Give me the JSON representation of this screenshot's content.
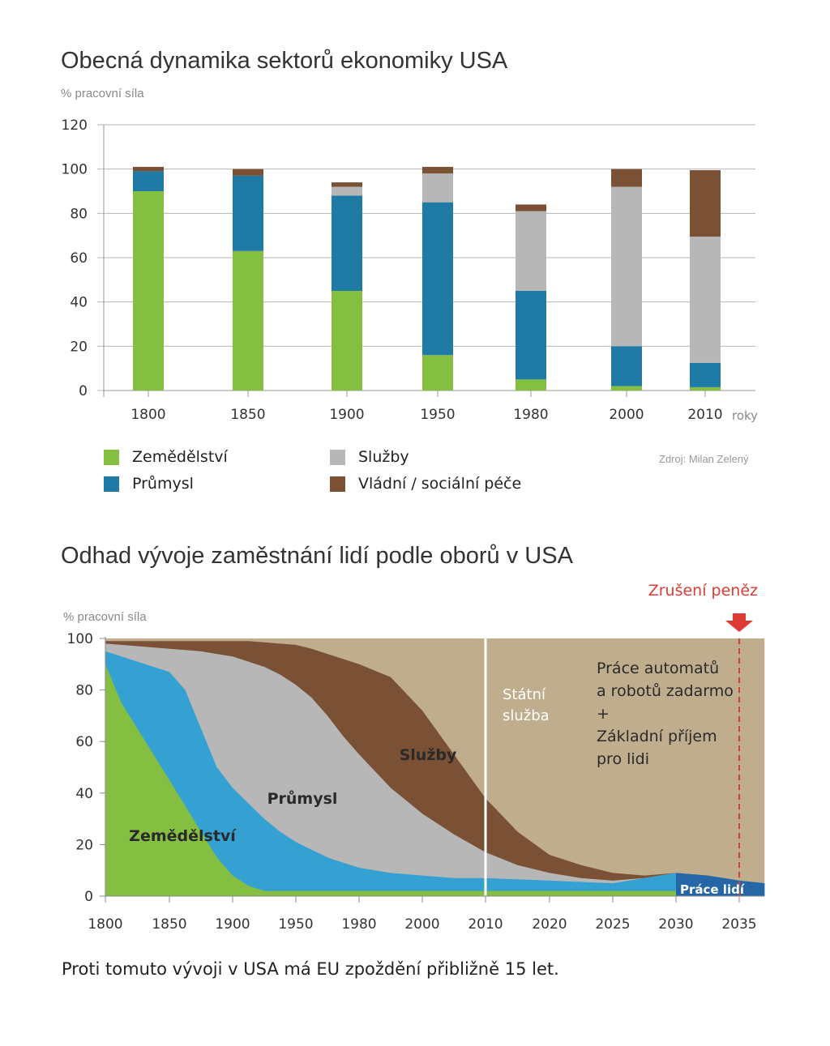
{
  "colors": {
    "agriculture": "#84bf41",
    "industry_top": "#1f7aa6",
    "industry_bottom": "#35a0d2",
    "services": "#b7b7b7",
    "government": "#7b5136",
    "automation": "#bfad8e",
    "human_work": "#2466a6",
    "abolition": "#dd3b33",
    "grid": "#b5b5b5"
  },
  "top": {
    "title": "Obecná dynamika sektorů ekonomiky USA",
    "unit": "% pracovní síla",
    "x_suffix": "roky",
    "source": "Zdroj: Milan Zelený",
    "legend": [
      {
        "label": "Zemědělství",
        "color_key": "agriculture"
      },
      {
        "label": "Průmysl",
        "color_key": "industry_top"
      },
      {
        "label": "Služby",
        "color_key": "services"
      },
      {
        "label": "Vládní / sociální péče",
        "color_key": "government"
      }
    ]
  },
  "bottom": {
    "title": "Odhad vývoje zaměstnání lidí podle oborů v USA",
    "unit": "% pracovní síla",
    "abolition_label": "Zrušení peněz",
    "area_labels": {
      "agriculture": "Zemědělství",
      "industry": "Průmysl",
      "services": "Služby",
      "government": [
        "Státní",
        "služba"
      ],
      "automation": [
        "Práce automatů",
        "a robotů zadarmo",
        "+",
        "Základní příjem",
        "pro lidi"
      ],
      "human_work": "Práce lidí"
    }
  },
  "footer": {
    "text": "Proti tomuto vývoji v USA má EU zpoždění přibližně 15 let."
  },
  "chart_data": [
    {
      "type": "bar",
      "stacked": true,
      "title": "Obecná dynamika sektorů ekonomiky USA",
      "ylabel": "% pracovní síla",
      "xlabel": "roky",
      "ylim": [
        0,
        120
      ],
      "yticks": [
        0,
        20,
        40,
        60,
        80,
        100,
        120
      ],
      "grid": true,
      "legend_position": "bottom",
      "categories": [
        "1800",
        "1850",
        "1900",
        "1950",
        "1980",
        "2000",
        "2010"
      ],
      "series": [
        {
          "name": "Zemědělství",
          "values": [
            90,
            63,
            45,
            16,
            5,
            2,
            1.5
          ]
        },
        {
          "name": "Průmysl",
          "values": [
            9,
            34,
            43,
            69,
            40,
            18,
            11
          ]
        },
        {
          "name": "Služby",
          "values": [
            0,
            0,
            4,
            13,
            36,
            72,
            57
          ]
        },
        {
          "name": "Vládní / sociální péče",
          "values": [
            2,
            3,
            2,
            3,
            3,
            8,
            30
          ]
        }
      ]
    },
    {
      "type": "area",
      "stacked": true,
      "title": "Odhad vývoje zaměstnání lidí podle oborů v USA",
      "ylabel": "% pracovní síla",
      "ylim": [
        0,
        100
      ],
      "yticks": [
        0,
        20,
        40,
        60,
        80,
        100
      ],
      "x_tick_labels": [
        "1800",
        "1850",
        "1900",
        "1950",
        "1980",
        "2000",
        "2010",
        "2020",
        "2025",
        "2030",
        "2035"
      ],
      "grid": false,
      "markers": [
        {
          "at": "2010",
          "style": "solid-white"
        },
        {
          "at": "2035",
          "style": "dashed-red",
          "label": "Zrušení peněz"
        }
      ],
      "x_positions": [
        0,
        0.25,
        0.5,
        0.75,
        1,
        1.25,
        1.5,
        1.75,
        2,
        2.25,
        2.5,
        2.75,
        3,
        3.25,
        3.5,
        3.75,
        4,
        4.5,
        5,
        5.5,
        6,
        6.5,
        7,
        7.5,
        8,
        8.5,
        9,
        9.5,
        10,
        10.4
      ],
      "series": [
        {
          "name": "Zemědělství",
          "cumulative": [
            90,
            75,
            65,
            55,
            45,
            35,
            25,
            15,
            8,
            4,
            2,
            2,
            2,
            2,
            2,
            2,
            2,
            2,
            2,
            2,
            2,
            2,
            2,
            2,
            2,
            2,
            2,
            2,
            2,
            2
          ]
        },
        {
          "name": "Průmysl",
          "cumulative": [
            95,
            93,
            91,
            89,
            87,
            80,
            65,
            50,
            42,
            36,
            30,
            25,
            21,
            18,
            15,
            13,
            11,
            9,
            8,
            7,
            7,
            6.5,
            6,
            5.5,
            5,
            7,
            9,
            8,
            6,
            5
          ]
        },
        {
          "name": "Služby",
          "cumulative": [
            98,
            97.5,
            97,
            96.5,
            96,
            95.5,
            95,
            94,
            93,
            91,
            89,
            86,
            82,
            77,
            70,
            62,
            55,
            42,
            32,
            24,
            17,
            12,
            9,
            7,
            6,
            7,
            9,
            8,
            6,
            5
          ]
        },
        {
          "name": "Státní služba",
          "cumulative": [
            99,
            99,
            99,
            99,
            99,
            99,
            99,
            99,
            99,
            99,
            98.5,
            98,
            97.5,
            96,
            94,
            92,
            90,
            85,
            72,
            55,
            38,
            25,
            16,
            12,
            9,
            8,
            9,
            8,
            6,
            5
          ]
        },
        {
          "name": "Práce automatů a robotů zadarmo + Základní příjem pro lidi",
          "cumulative": [
            100,
            100,
            100,
            100,
            100,
            100,
            100,
            100,
            100,
            100,
            100,
            100,
            100,
            100,
            100,
            100,
            100,
            100,
            100,
            100,
            100,
            100,
            100,
            100,
            100,
            100,
            100,
            100,
            100,
            100
          ]
        },
        {
          "name": "Práce lidí",
          "cumulative": [
            0,
            0,
            0,
            0,
            0,
            0,
            0,
            0,
            0,
            0,
            0,
            0,
            0,
            0,
            0,
            0,
            0,
            0,
            0,
            0,
            0,
            0,
            0,
            0,
            0,
            9,
            9,
            8,
            6,
            5
          ],
          "from_x": 9
        }
      ]
    }
  ]
}
